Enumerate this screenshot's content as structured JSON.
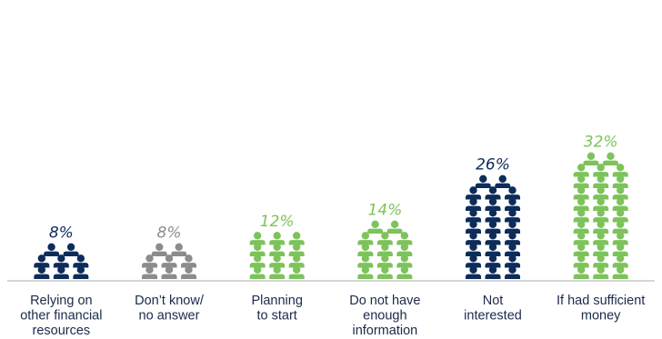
{
  "chart_data": {
    "type": "bar",
    "title": "",
    "xlabel": "",
    "ylabel": "",
    "unit": "%",
    "categories": [
      [
        "Relying on",
        "other financial",
        "resources"
      ],
      [
        "Don’t know/",
        "no answer"
      ],
      [
        "Planning",
        "to start"
      ],
      [
        "Do not have",
        "enough",
        "information"
      ],
      [
        "Not",
        "interested"
      ],
      [
        "If had sufficient",
        "money"
      ]
    ],
    "values": [
      8,
      8,
      12,
      14,
      26,
      32
    ],
    "value_labels": [
      "8%",
      "8%",
      "12%",
      "14%",
      "26%",
      "32%"
    ],
    "colors": [
      "#0d2c5a",
      "#8c8c8c",
      "#7dc35b",
      "#7dc35b",
      "#0d2c5a",
      "#7dc35b"
    ],
    "baseline_color": "#bdbdbd",
    "grid": false,
    "legend": "none"
  }
}
